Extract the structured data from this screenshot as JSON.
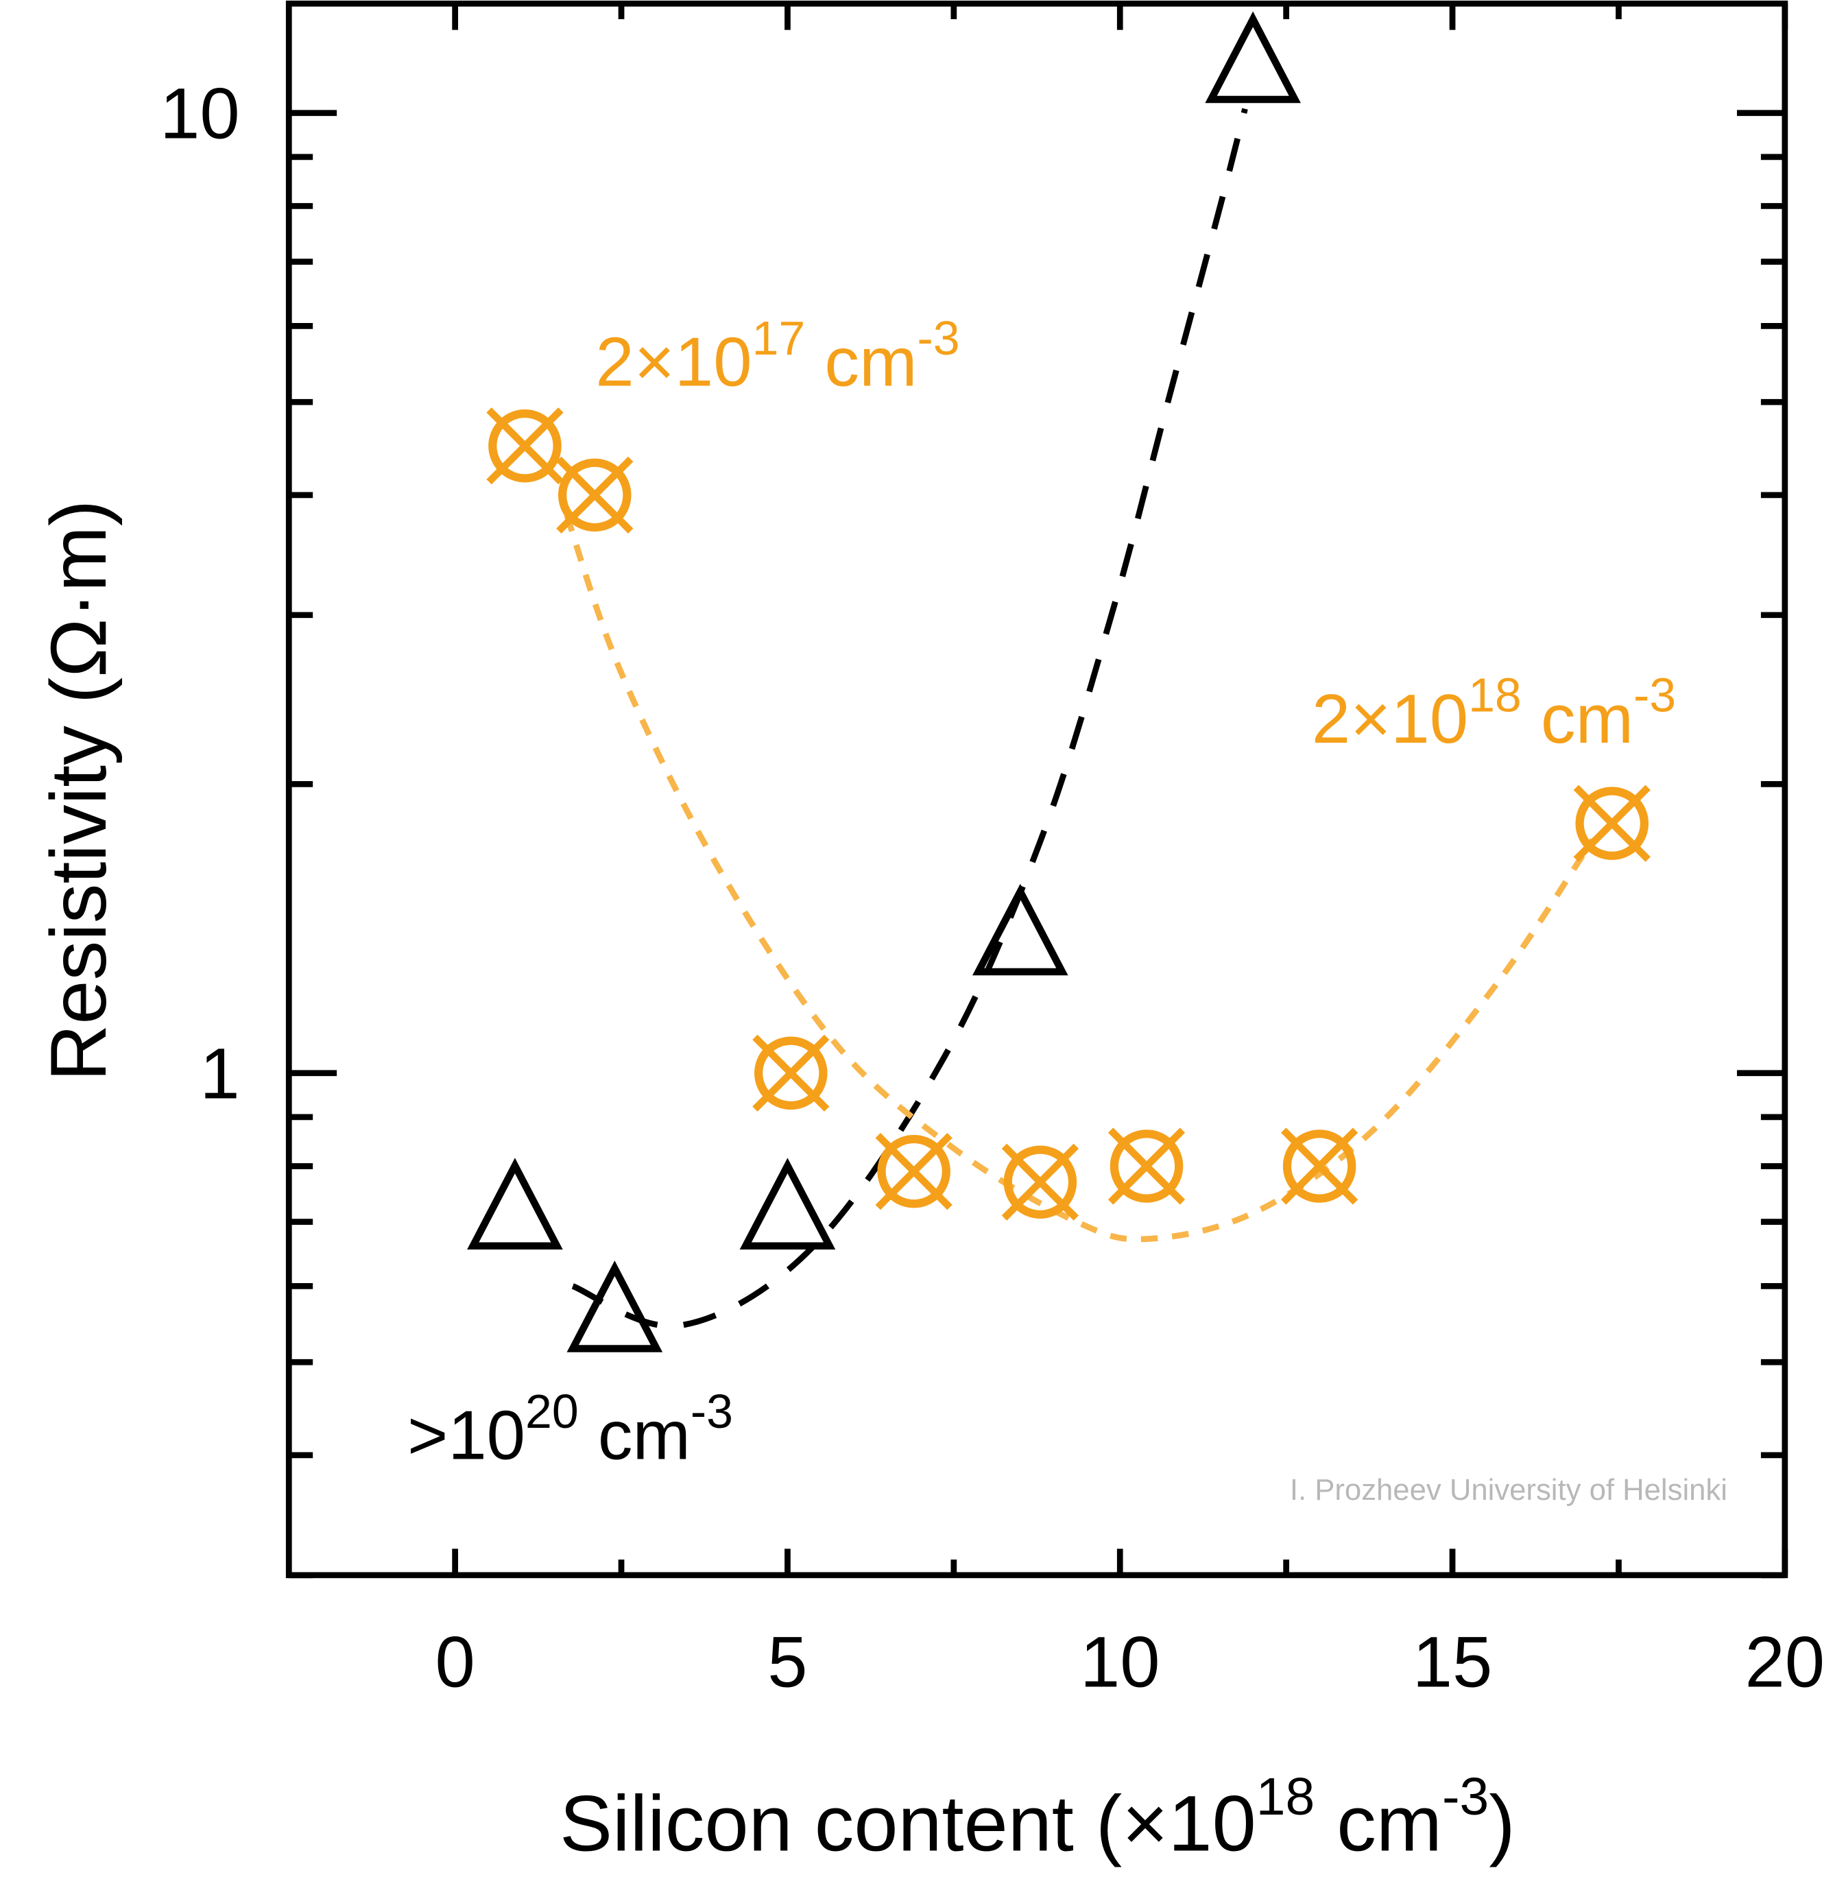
{
  "chart_data": {
    "type": "scatter",
    "title": "",
    "xlabel": {
      "main": "Silicon content (×10",
      "sup": "18",
      "unit": " cm",
      "unit_sup": "-3",
      "close": ")"
    },
    "ylabel": "Resistivity (Ω·m)",
    "xlim": [
      -2.5,
      20
    ],
    "ylim": [
      0.3,
      13
    ],
    "yscale": "log",
    "grid": false,
    "x_ticks": [
      0,
      5,
      10,
      15,
      20
    ],
    "x_tick_labels": [
      "0",
      "5",
      "10",
      "15",
      "20"
    ],
    "y_major_ticks": [
      1,
      10
    ],
    "y_tick_labels": [
      "1",
      "10"
    ],
    "y_minor_ticks": [
      0.3,
      0.4,
      0.5,
      0.6,
      0.7,
      0.8,
      0.9,
      2,
      3,
      4,
      5,
      6,
      7,
      8,
      9
    ],
    "series": [
      {
        "marker": "circle-x",
        "color": "#f5a01a",
        "points": [
          [
            1.05,
            4.5
          ],
          [
            2.1,
            4.0
          ],
          [
            5.05,
            1.0
          ],
          [
            6.9,
            0.79
          ],
          [
            8.8,
            0.77
          ],
          [
            10.4,
            0.8
          ],
          [
            13.0,
            0.8
          ],
          [
            17.4,
            1.82
          ]
        ]
      },
      {
        "marker": "triangle",
        "color": "#000000",
        "points": [
          [
            0.9,
            0.71
          ],
          [
            2.4,
            0.555
          ],
          [
            5.0,
            0.71
          ],
          [
            8.5,
            1.37
          ],
          [
            12.0,
            11.1
          ]
        ]
      }
    ],
    "fits": [
      {
        "style": "dashed",
        "color": "#000000",
        "points": [
          [
            1.77,
            0.6
          ],
          [
            3.39,
            0.546
          ],
          [
            5.38,
            0.659
          ],
          [
            7.36,
            1.04
          ],
          [
            8.81,
            1.75
          ],
          [
            9.89,
            3.03
          ],
          [
            10.7,
            4.94
          ],
          [
            11.52,
            8.06
          ],
          [
            11.88,
            10.1
          ]
        ]
      },
      {
        "style": "dotted",
        "color": "#f8b54a",
        "points": [
          [
            1.68,
            3.81
          ],
          [
            2.49,
            2.62
          ],
          [
            3.93,
            1.65
          ],
          [
            5.74,
            1.07
          ],
          [
            7.55,
            0.83
          ],
          [
            9.35,
            0.7
          ],
          [
            10.43,
            0.672
          ],
          [
            12.06,
            0.718
          ],
          [
            13.86,
            0.879
          ],
          [
            15.67,
            1.24
          ],
          [
            17.11,
            1.75
          ]
        ]
      }
    ],
    "annotations": [
      {
        "base": "2×10",
        "sup": "17",
        "unit": " cm",
        "unit_sup": "-3",
        "color": "#f5a01a"
      },
      {
        "base": "2×10",
        "sup": "18",
        "unit": " cm",
        "unit_sup": "-3",
        "color": "#f5a01a"
      },
      {
        "base": ">10",
        "sup": "20",
        "unit": " cm",
        "unit_sup": "-3",
        "color": "#000000"
      }
    ],
    "watermark": "I. Prozheev University of Helsinki"
  }
}
